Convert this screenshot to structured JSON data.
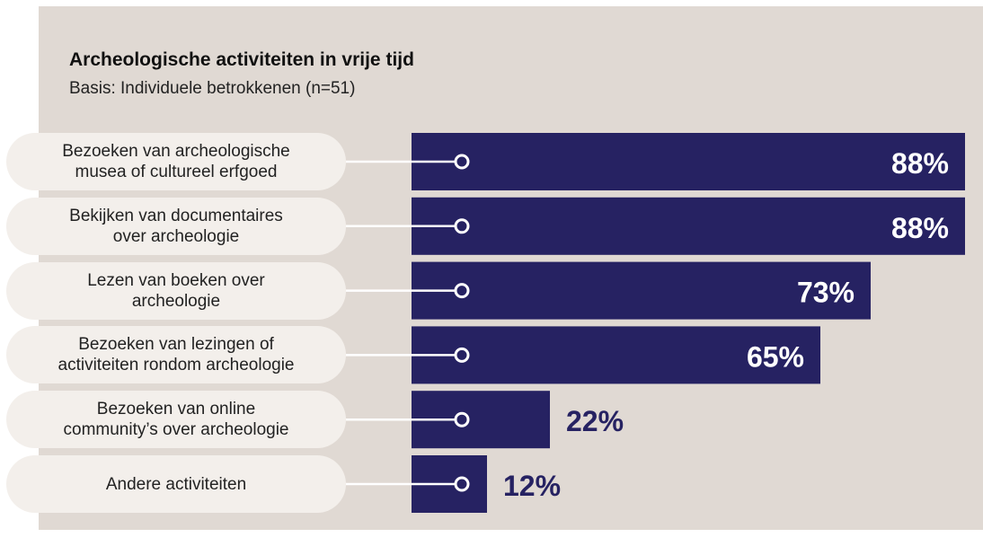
{
  "chart_data": {
    "type": "bar",
    "orientation": "horizontal",
    "title": "Archeologische activiteiten in vrije tijd",
    "subtitle": "Basis: Individuele betrokkenen (n=51)",
    "categories": [
      "Bezoeken van archeologische\nmusea of cultureel erfgoed",
      "Bekijken van documentaires\nover archeologie",
      "Lezen van boeken over\narcheologie",
      "Bezoeken van lezingen of\nactiviteiten rondom archeologie",
      "Bezoeken van online\ncommunity’s over archeologie",
      "Andere activiteiten"
    ],
    "values": [
      88,
      88,
      73,
      65,
      22,
      12
    ],
    "value_labels": [
      "88%",
      "88%",
      "73%",
      "65%",
      "22%",
      "12%"
    ],
    "color": "#262262"
  }
}
